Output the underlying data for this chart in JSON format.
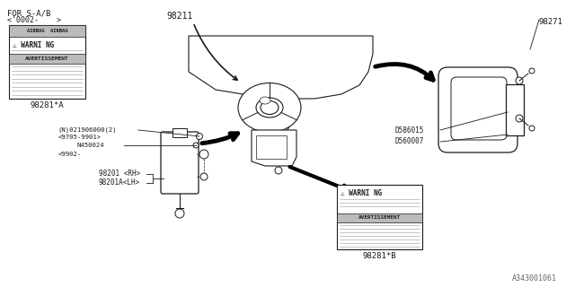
{
  "bg_color": "#ffffff",
  "line_color": "#1a1a1a",
  "text_color": "#1a1a1a",
  "fig_width": 6.4,
  "fig_height": 3.2,
  "dpi": 100,
  "header_text": "FOR S-A/B",
  "header_sub": "<'0002-    >",
  "label_A": "98281*A",
  "airbag_module": "98211",
  "passenger_airbag": "98271",
  "side_airbag_rh": "98201 <RH>",
  "side_airbag_lh": "98201A<LH>",
  "label_B": "98281*B",
  "bolt1": "D586015",
  "bolt2": "D560007",
  "nut": "N450024",
  "n_part": "(N)021906000(2)",
  "date1": "<9705-9901>",
  "date2": "<9902-",
  "footer": "A343001061"
}
